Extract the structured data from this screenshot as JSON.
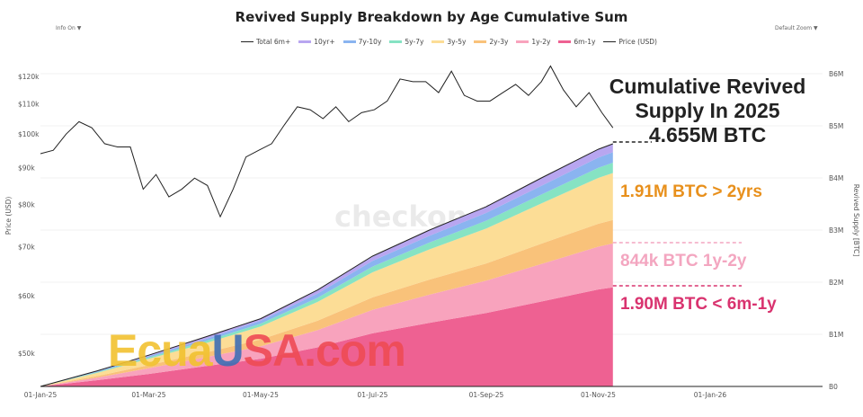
{
  "controls": {
    "info": "Info On ▼",
    "zoom": "Default Zoom ▼"
  },
  "annotations": {
    "headline_1": "Cumulative Revived",
    "headline_2": "Supply In 2025",
    "headline_3": "4.655M BTC",
    "over_2y": "1.91M BTC > 2yrs",
    "y1_2": "844k BTC 1y-2y",
    "m6_1y": "1.90M BTC < 6m-1y"
  },
  "watermarks": {
    "checkonchain": "checkonchain",
    "ecuausa": "EcuaUSA.com"
  },
  "colors": {
    "Total 6m+": "#222222",
    "10yr+": "#b8a6f0",
    "7y-10y": "#8ab4f0",
    "5y-7y": "#86e3c3",
    "3y-5y": "#fcdd96",
    "2y-3y": "#f9c27a",
    "1y-2y": "#f8a3bd",
    "6m-1y": "#ee6192",
    "Price (USD)": "#222222",
    "ann_orange": "#e8901c",
    "ann_pink": "#f3a6c0",
    "ann_red": "#d9336f"
  },
  "chart_data": {
    "type": "area",
    "title": "Revived Supply Breakdown by Age Cumulative Sum",
    "legend": [
      "Total 6m+",
      "10yr+",
      "7y-10y",
      "5y-7y",
      "3y-5y",
      "2y-3y",
      "1y-2y",
      "6m-1y",
      "Price (USD)"
    ],
    "legend_position": "top",
    "xlabel": "",
    "ylabel_left": "Price (USD)",
    "ylabel_right": "Revived Supply [BTC]",
    "left_scale": "log",
    "ylim_left": [
      45000,
      130000
    ],
    "ylim_right": [
      0,
      6000000
    ],
    "x_ticks": [
      "01-Jan-25",
      "01-Mar-25",
      "01-May-25",
      "01-Jul-25",
      "01-Sep-25",
      "01-Nov-25",
      "01-Jan-26"
    ],
    "left_ticks": [
      "$50k",
      "$60k",
      "$70k",
      "$80k",
      "$90k",
      "$100k",
      "$110k",
      "$120k"
    ],
    "right_ticks": [
      "B0",
      "B1M",
      "B2M",
      "B3M",
      "B4M",
      "B5M",
      "B6M"
    ],
    "grid": true,
    "supply_x": [
      "2025-01-01",
      "2025-02-01",
      "2025-03-01",
      "2025-04-01",
      "2025-05-01",
      "2025-06-01",
      "2025-07-01",
      "2025-08-01",
      "2025-09-01",
      "2025-10-01",
      "2025-11-01",
      "2025-11-09"
    ],
    "supply_series": [
      {
        "name": "6m-1y",
        "values_mbtc": [
          0,
          0.12,
          0.24,
          0.39,
          0.53,
          0.75,
          1.02,
          1.22,
          1.41,
          1.63,
          1.86,
          1.9
        ]
      },
      {
        "name": "1y-2y",
        "values_mbtc": [
          0,
          0.05,
          0.11,
          0.17,
          0.24,
          0.33,
          0.45,
          0.54,
          0.62,
          0.72,
          0.82,
          0.844
        ]
      },
      {
        "name": "2y-3y",
        "values_mbtc": [
          0,
          0.03,
          0.06,
          0.09,
          0.13,
          0.18,
          0.24,
          0.29,
          0.33,
          0.39,
          0.44,
          0.45
        ]
      },
      {
        "name": "3y-5y",
        "values_mbtc": [
          0,
          0.06,
          0.12,
          0.18,
          0.25,
          0.36,
          0.48,
          0.58,
          0.67,
          0.77,
          0.88,
          0.9
        ]
      },
      {
        "name": "5y-7y",
        "values_mbtc": [
          0,
          0.015,
          0.025,
          0.04,
          0.055,
          0.08,
          0.11,
          0.13,
          0.15,
          0.17,
          0.195,
          0.2
        ]
      },
      {
        "name": "7y-10y",
        "values_mbtc": [
          0,
          0.015,
          0.025,
          0.04,
          0.055,
          0.08,
          0.11,
          0.13,
          0.15,
          0.17,
          0.195,
          0.2
        ]
      },
      {
        "name": "10yr+",
        "values_mbtc": [
          0,
          0.01,
          0.02,
          0.04,
          0.035,
          0.07,
          0.08,
          0.11,
          0.12,
          0.15,
          0.16,
          0.161
        ]
      }
    ],
    "total_6m_plus_mbtc": [
      0,
      0.3,
      0.6,
      0.95,
      1.3,
      1.85,
      2.5,
      3.0,
      3.45,
      4.0,
      4.55,
      4.655
    ],
    "price_x": [
      "2025-01-01",
      "2025-01-08",
      "2025-01-15",
      "2025-01-22",
      "2025-01-29",
      "2025-02-05",
      "2025-02-12",
      "2025-02-19",
      "2025-02-26",
      "2025-03-05",
      "2025-03-12",
      "2025-03-19",
      "2025-03-26",
      "2025-04-02",
      "2025-04-09",
      "2025-04-16",
      "2025-04-23",
      "2025-04-30",
      "2025-05-07",
      "2025-05-14",
      "2025-05-21",
      "2025-05-28",
      "2025-06-04",
      "2025-06-11",
      "2025-06-18",
      "2025-06-25",
      "2025-07-02",
      "2025-07-09",
      "2025-07-16",
      "2025-07-23",
      "2025-07-30",
      "2025-08-06",
      "2025-08-13",
      "2025-08-20",
      "2025-08-27",
      "2025-09-03",
      "2025-09-10",
      "2025-09-17",
      "2025-09-24",
      "2025-10-01",
      "2025-10-06",
      "2025-10-13",
      "2025-10-20",
      "2025-10-27",
      "2025-11-03",
      "2025-11-09"
    ],
    "price_usd_k": [
      94,
      95,
      100,
      104,
      102,
      97,
      96,
      96,
      84,
      88,
      82,
      84,
      87,
      85,
      77,
      84,
      93,
      95,
      97,
      103,
      109,
      108,
      105,
      109,
      104,
      107,
      108,
      111,
      119,
      118,
      118,
      114,
      122,
      113,
      111,
      111,
      114,
      117,
      113,
      118,
      124,
      115,
      109,
      114,
      107,
      102
    ]
  }
}
